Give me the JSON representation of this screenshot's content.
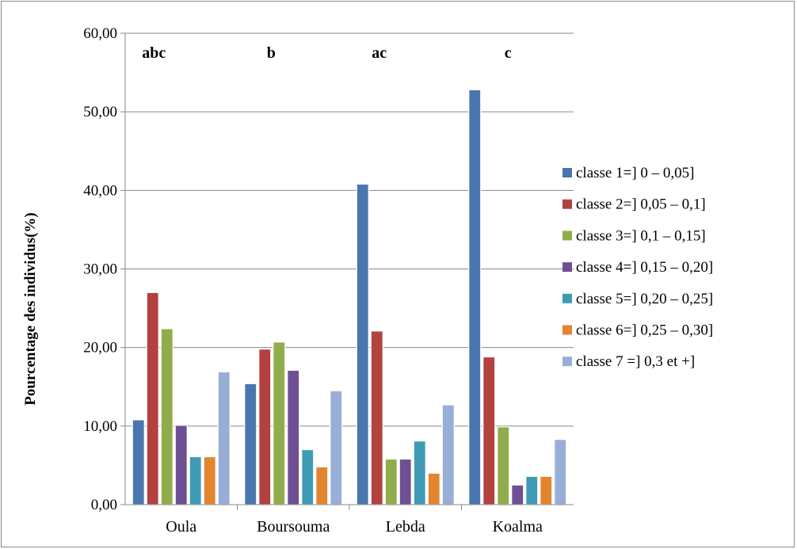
{
  "chart_data": {
    "type": "bar",
    "categories": [
      "Oula",
      "Boursouma",
      "Lebda",
      "Koalma"
    ],
    "ylabel": "Pourcentage des individus(%)",
    "xlabel": "",
    "ylim": [
      0,
      60
    ],
    "yticks": [
      "0,00",
      "10,00",
      "20,00",
      "30,00",
      "40,00",
      "50,00",
      "60,00"
    ],
    "grid": true,
    "legend_position": "right",
    "annotations": [
      "abc",
      "b",
      "ac",
      "c"
    ],
    "series": [
      {
        "name": "classe 1=] 0 – 0,05]",
        "color": "#4a76b0",
        "values": [
          10.8,
          15.4,
          40.8,
          52.8
        ]
      },
      {
        "name": "classe 2=] 0,05 – 0,1]",
        "color": "#b2413f",
        "values": [
          27.0,
          19.8,
          22.1,
          18.8
        ]
      },
      {
        "name": "classe 3=] 0,1 – 0,15]",
        "color": "#8fae4b",
        "values": [
          22.4,
          20.7,
          5.8,
          9.9
        ]
      },
      {
        "name": "classe 4=] 0,15 – 0,20]",
        "color": "#6e4f93",
        "values": [
          10.1,
          17.1,
          5.8,
          2.5
        ]
      },
      {
        "name": "classe 5=] 0,20 – 0,25]",
        "color": "#3e9ab5",
        "values": [
          6.1,
          7.0,
          8.1,
          3.6
        ]
      },
      {
        "name": "classe 6=] 0,25 – 0,30]",
        "color": "#e3852f",
        "values": [
          6.1,
          4.8,
          4.0,
          3.6
        ]
      },
      {
        "name": "classe 7 =] 0,3 et +]",
        "color": "#98aed6",
        "values": [
          16.9,
          14.5,
          12.7,
          8.3
        ]
      }
    ]
  }
}
